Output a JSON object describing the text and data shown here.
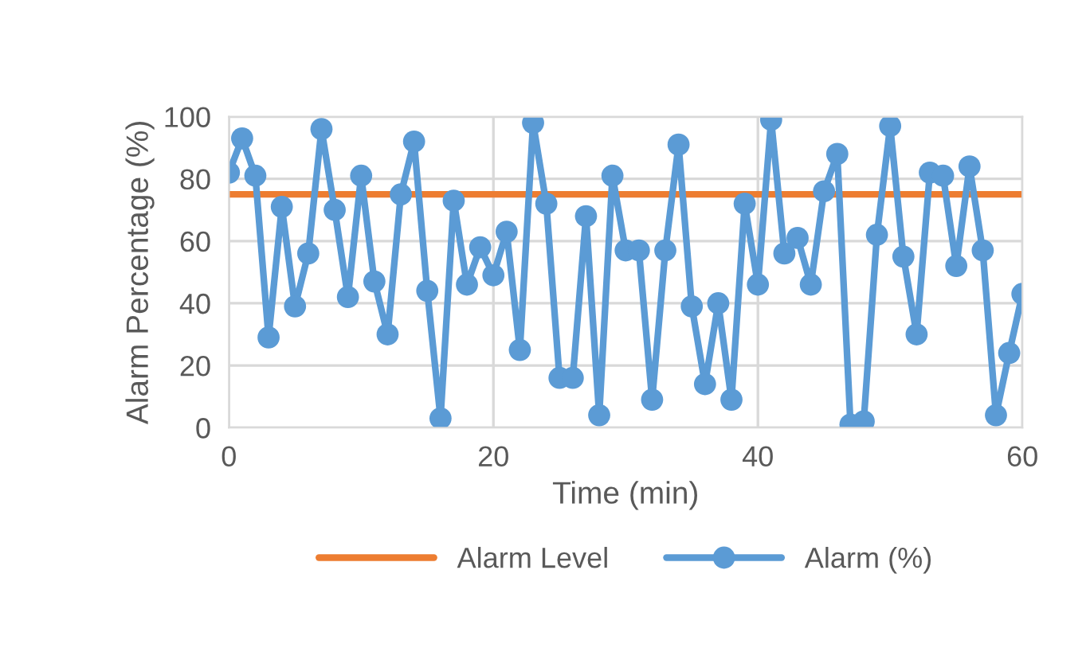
{
  "chart_data": {
    "type": "line",
    "xlabel": "Time (min)",
    "ylabel": "Alarm Percentage (%)",
    "xlim": [
      0,
      60
    ],
    "xticks": [
      0,
      20,
      40,
      60
    ],
    "ylim": [
      0,
      100
    ],
    "yticks": [
      0,
      20,
      40,
      60,
      80,
      100
    ],
    "grid": true,
    "legend": "bottom",
    "series": [
      {
        "name": "Alarm Level",
        "color": "#ed7d31",
        "marker": "none",
        "x": [
          0,
          60
        ],
        "values": [
          75,
          75
        ]
      },
      {
        "name": "Alarm (%)",
        "color": "#5b9bd5",
        "marker": "circle",
        "x": [
          0,
          1,
          2,
          3,
          4,
          5,
          6,
          7,
          8,
          9,
          10,
          11,
          12,
          13,
          14,
          15,
          16,
          17,
          18,
          19,
          20,
          21,
          22,
          23,
          24,
          25,
          26,
          27,
          28,
          29,
          30,
          31,
          32,
          33,
          34,
          35,
          36,
          37,
          38,
          39,
          40,
          41,
          42,
          43,
          44,
          45,
          46,
          47,
          48,
          49,
          50,
          51,
          52,
          53,
          54,
          55,
          56,
          57,
          58,
          59,
          60
        ],
        "values": [
          82,
          93,
          81,
          29,
          71,
          39,
          56,
          96,
          70,
          42,
          81,
          47,
          30,
          75,
          92,
          44,
          3,
          73,
          46,
          58,
          49,
          63,
          25,
          98,
          72,
          16,
          16,
          68,
          4,
          81,
          57,
          57,
          9,
          57,
          91,
          39,
          14,
          40,
          9,
          72,
          46,
          99,
          56,
          61,
          46,
          76,
          88,
          1,
          2,
          62,
          97,
          55,
          30,
          82,
          81,
          52,
          84,
          57,
          4,
          24,
          43
        ]
      }
    ]
  }
}
